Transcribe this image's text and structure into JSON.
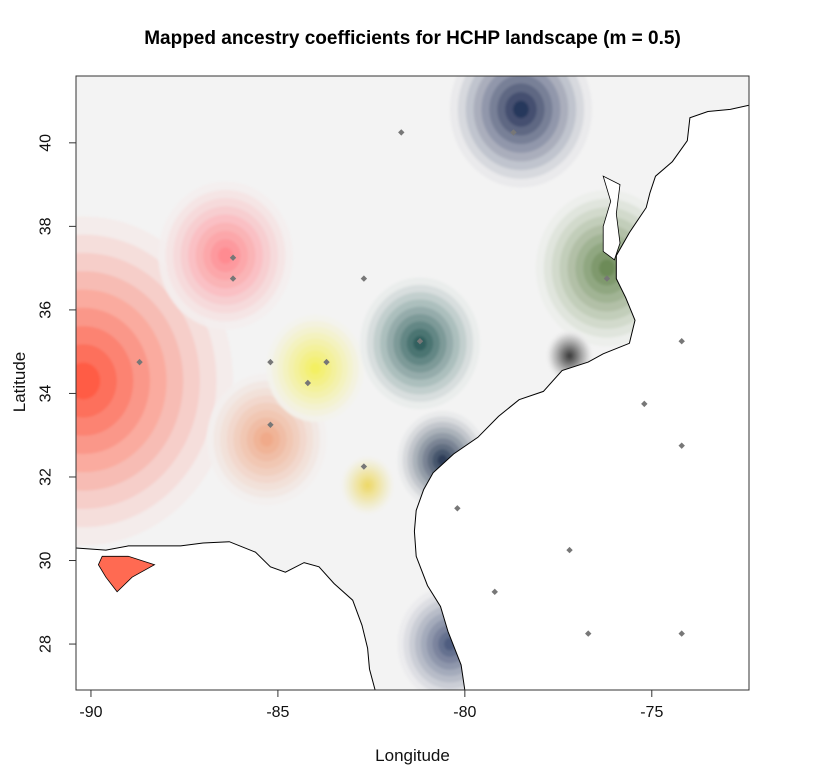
{
  "title": "Mapped ancestry coefficients for HCHP landscape (m = 0.5)",
  "xlabel": "Longitude",
  "ylabel": "Latitude",
  "chart_data": {
    "type": "heatmap",
    "title": "Mapped ancestry coefficients for HCHP landscape (m = 0.5)",
    "xlabel": "Longitude",
    "ylabel": "Latitude",
    "xlim": [
      -90.4,
      -72.4
    ],
    "ylim": [
      26.9,
      41.6
    ],
    "x_ticks": [
      -90,
      -85,
      -80,
      -75
    ],
    "y_ticks": [
      28,
      30,
      32,
      34,
      36,
      38,
      40
    ],
    "x_tick_labels": [
      "-90",
      "-85",
      "-80",
      "-75"
    ],
    "y_tick_labels": [
      "28",
      "30",
      "32",
      "34",
      "36",
      "38",
      "40"
    ],
    "ancestry_clusters": [
      {
        "lon": -90.2,
        "lat": 34.3,
        "color": "#ff5a42",
        "spread": 4.0
      },
      {
        "lon": -86.4,
        "lat": 37.3,
        "color": "#ff8a8f",
        "spread": 1.8
      },
      {
        "lon": -85.3,
        "lat": 32.9,
        "color": "#efa888",
        "spread": 1.6
      },
      {
        "lon": -84.0,
        "lat": 34.6,
        "color": "#f3ef62",
        "spread": 1.3
      },
      {
        "lon": -82.6,
        "lat": 31.8,
        "color": "#ecd96a",
        "spread": 0.7
      },
      {
        "lon": -81.2,
        "lat": 35.2,
        "color": "#2e5f5c",
        "spread": 1.6
      },
      {
        "lon": -78.5,
        "lat": 40.8,
        "color": "#26345a",
        "spread": 1.9
      },
      {
        "lon": -80.6,
        "lat": 32.4,
        "color": "#2b3c55",
        "spread": 1.2
      },
      {
        "lon": -80.4,
        "lat": 28.0,
        "color": "#4e5b7e",
        "spread": 1.4
      },
      {
        "lon": -76.2,
        "lat": 37.0,
        "color": "#6b8a55",
        "spread": 1.9
      },
      {
        "lon": -77.2,
        "lat": 34.9,
        "color": "#3d3d3d",
        "spread": 0.6
      }
    ],
    "sample_points": [
      {
        "lon": -81.7,
        "lat": 40.25
      },
      {
        "lon": -78.7,
        "lat": 40.25
      },
      {
        "lon": -86.2,
        "lat": 37.25
      },
      {
        "lon": -86.2,
        "lat": 36.75
      },
      {
        "lon": -82.7,
        "lat": 36.75
      },
      {
        "lon": -76.2,
        "lat": 36.75
      },
      {
        "lon": -81.2,
        "lat": 35.25
      },
      {
        "lon": -74.2,
        "lat": 35.25
      },
      {
        "lon": -88.7,
        "lat": 34.75
      },
      {
        "lon": -85.2,
        "lat": 34.75
      },
      {
        "lon": -83.7,
        "lat": 34.75
      },
      {
        "lon": -84.2,
        "lat": 34.25
      },
      {
        "lon": -75.2,
        "lat": 33.75
      },
      {
        "lon": -85.2,
        "lat": 33.25
      },
      {
        "lon": -74.2,
        "lat": 32.75
      },
      {
        "lon": -82.7,
        "lat": 32.25
      },
      {
        "lon": -80.2,
        "lat": 31.25
      },
      {
        "lon": -77.2,
        "lat": 30.25
      },
      {
        "lon": -79.2,
        "lat": 29.25
      },
      {
        "lon": -76.7,
        "lat": 28.25
      },
      {
        "lon": -74.2,
        "lat": 28.25
      }
    ],
    "coastline": [
      [
        -90.4,
        30.3
      ],
      [
        -89.6,
        30.25
      ],
      [
        -89.0,
        30.35
      ],
      [
        -88.3,
        30.35
      ],
      [
        -87.6,
        30.35
      ],
      [
        -87.0,
        30.42
      ],
      [
        -86.3,
        30.45
      ],
      [
        -85.6,
        30.2
      ],
      [
        -85.2,
        29.85
      ],
      [
        -84.8,
        29.72
      ],
      [
        -84.3,
        29.95
      ],
      [
        -83.9,
        29.85
      ],
      [
        -83.5,
        29.45
      ],
      [
        -83.0,
        29.05
      ],
      [
        -82.75,
        28.45
      ],
      [
        -82.6,
        27.9
      ],
      [
        -82.55,
        27.4
      ],
      [
        -82.4,
        26.9
      ],
      [
        -80.0,
        26.9
      ],
      [
        -80.1,
        27.5
      ],
      [
        -80.45,
        28.3
      ],
      [
        -80.65,
        28.9
      ],
      [
        -81.0,
        29.4
      ],
      [
        -81.3,
        30.1
      ],
      [
        -81.35,
        30.7
      ],
      [
        -81.3,
        31.2
      ],
      [
        -81.1,
        31.7
      ],
      [
        -80.85,
        32.1
      ],
      [
        -80.3,
        32.55
      ],
      [
        -79.65,
        32.95
      ],
      [
        -79.1,
        33.45
      ],
      [
        -78.55,
        33.85
      ],
      [
        -77.9,
        34.05
      ],
      [
        -77.4,
        34.55
      ],
      [
        -76.7,
        34.75
      ],
      [
        -76.3,
        34.95
      ],
      [
        -75.6,
        35.2
      ],
      [
        -75.45,
        35.75
      ],
      [
        -75.7,
        36.3
      ],
      [
        -75.95,
        36.75
      ],
      [
        -75.95,
        37.3
      ],
      [
        -75.6,
        37.85
      ],
      [
        -75.15,
        38.45
      ],
      [
        -75.05,
        38.8
      ],
      [
        -74.9,
        39.2
      ],
      [
        -74.45,
        39.55
      ],
      [
        -74.05,
        40.05
      ],
      [
        -73.98,
        40.6
      ],
      [
        -73.5,
        40.75
      ],
      [
        -72.9,
        40.8
      ],
      [
        -72.4,
        40.9
      ]
    ],
    "inland_water": [
      [
        [
          -89.7,
          30.1
        ],
        [
          -89.0,
          30.1
        ],
        [
          -88.3,
          29.9
        ],
        [
          -88.9,
          29.6
        ],
        [
          -89.3,
          29.25
        ],
        [
          -89.6,
          29.6
        ],
        [
          -89.8,
          29.9
        ]
      ],
      [
        [
          -76.3,
          39.2
        ],
        [
          -76.1,
          38.6
        ],
        [
          -76.3,
          38.0
        ],
        [
          -76.3,
          37.4
        ],
        [
          -76.0,
          37.2
        ],
        [
          -75.85,
          37.6
        ],
        [
          -75.95,
          38.3
        ],
        [
          -75.85,
          39.0
        ]
      ]
    ]
  }
}
